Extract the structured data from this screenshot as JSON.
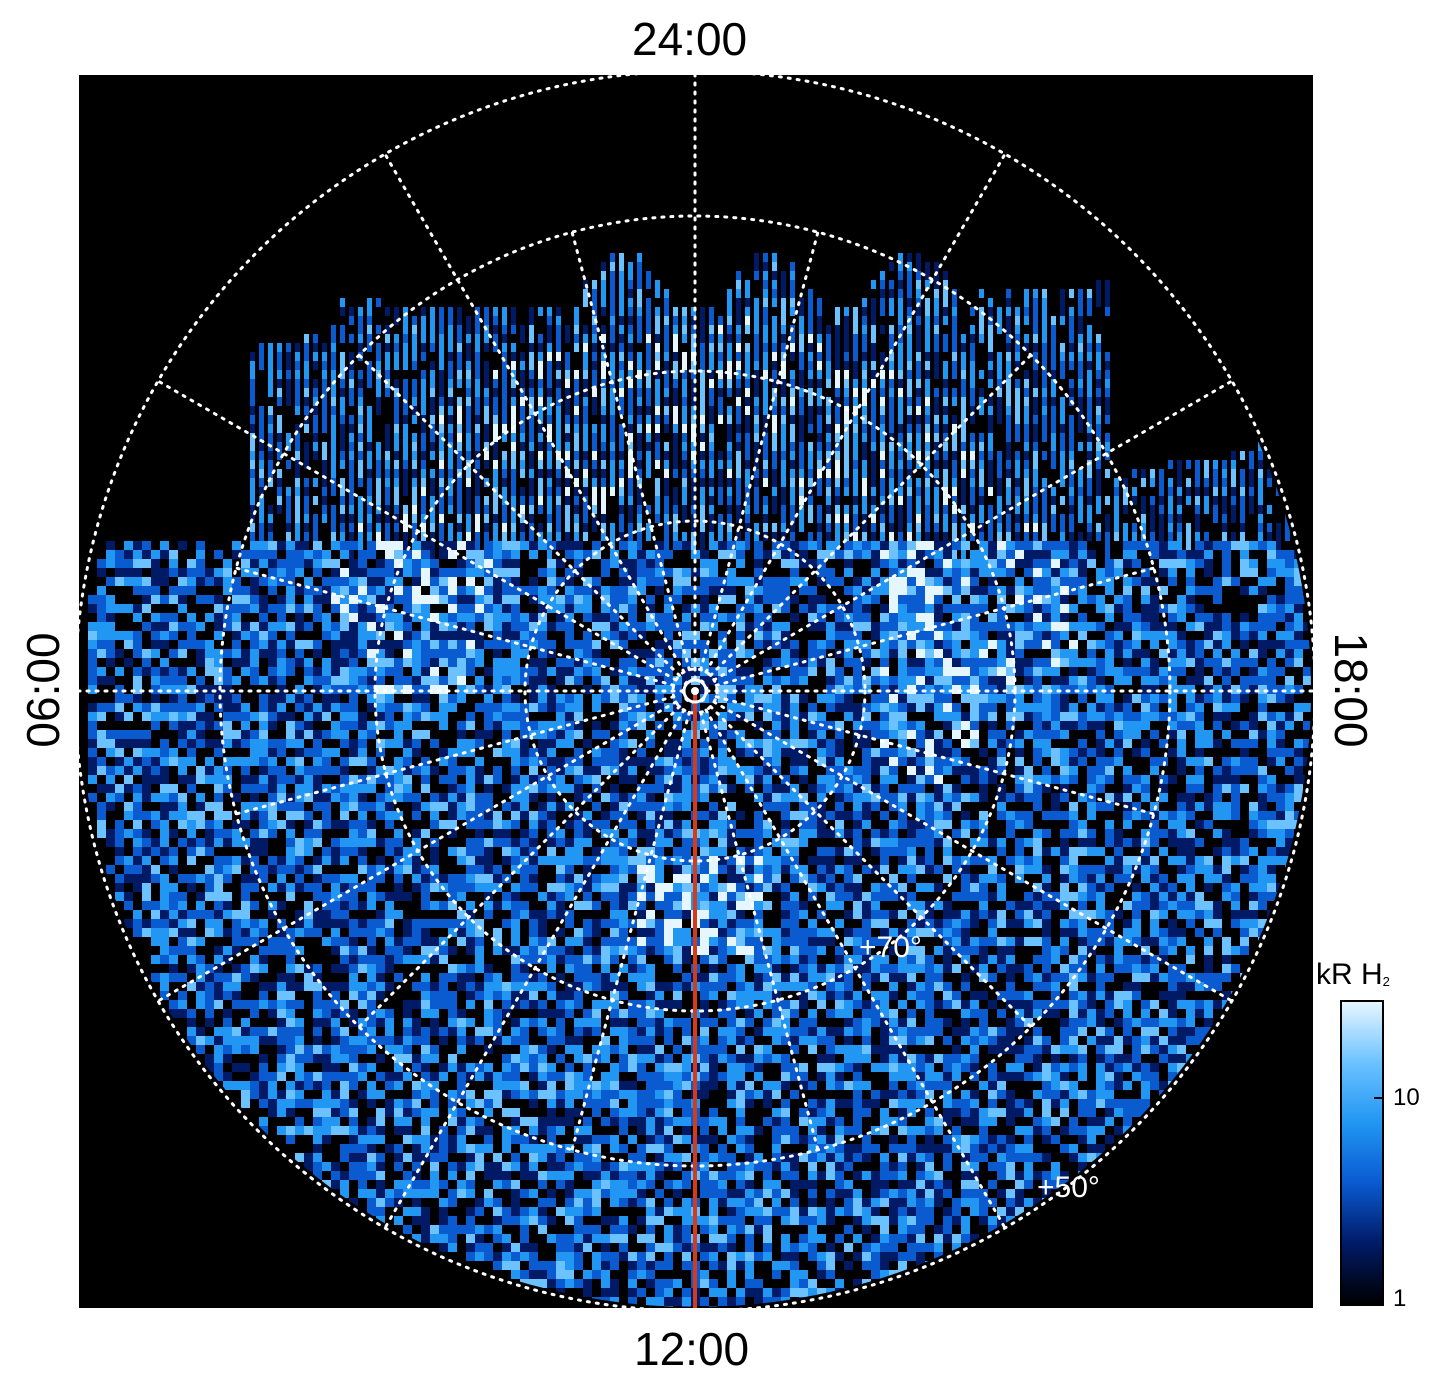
{
  "local_time_labels": {
    "top": "24:00",
    "bottom": "12:00",
    "left": "06:00",
    "right": "18:00"
  },
  "latitude_labels": {
    "inner": "+70°",
    "outer": "+50°"
  },
  "colorbar": {
    "title": "kR H",
    "title_subscript": "2",
    "scale": "log",
    "tick_labels": [
      "10",
      "1"
    ],
    "colors": [
      "#000000",
      "#001a66",
      "#0a5ad0",
      "#2196f3",
      "#6cc2ff",
      "#e6f6ff"
    ]
  },
  "colors": {
    "background": "#000000",
    "grid": "#ffffff",
    "meridian_line": "#d53b1a"
  }
}
